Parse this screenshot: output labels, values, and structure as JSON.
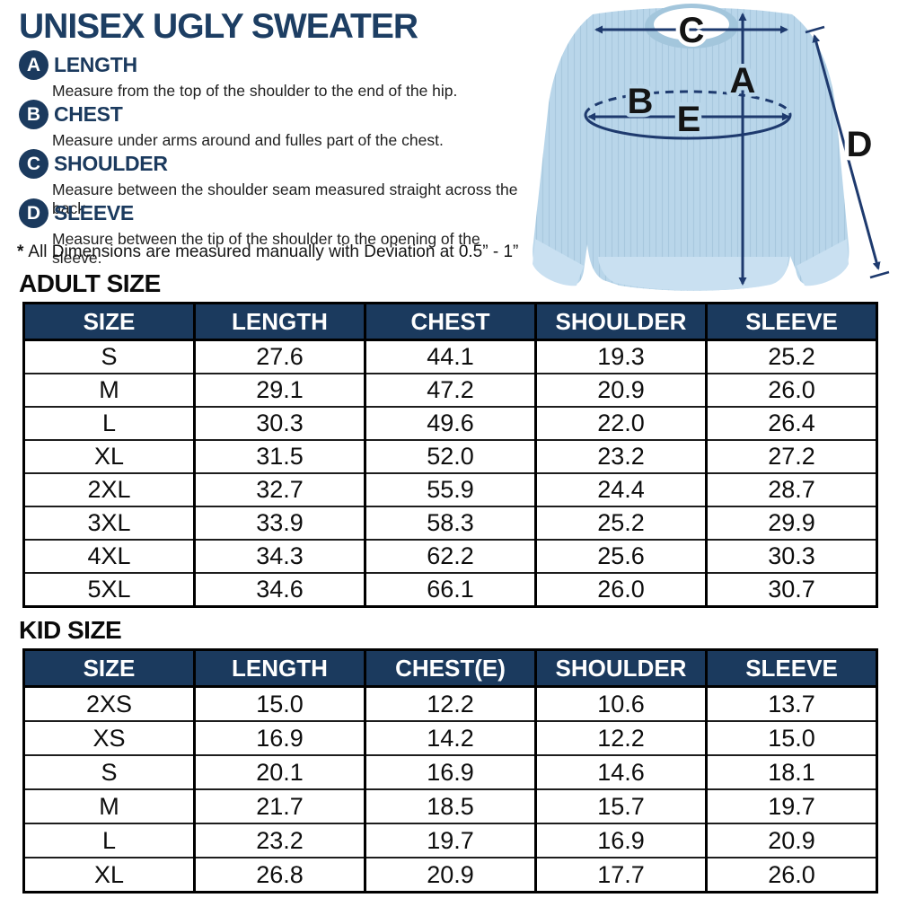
{
  "title": "UNISEX UGLY SWEATER",
  "legend": {
    "items": [
      {
        "badge": "A",
        "label": "LENGTH",
        "description": "Measure from the top of the shoulder to the end of the hip."
      },
      {
        "badge": "B",
        "label": "CHEST",
        "description": "Measure under arms around and fulles part of the chest."
      },
      {
        "badge": "C",
        "label": "SHOULDER",
        "description": "Measure between the shoulder seam measured straight across the back."
      },
      {
        "badge": "D",
        "label": "SLEEVE",
        "description": "Measure between the tip of the shoulder to the opening of the sleeve."
      }
    ],
    "note_star": "*",
    "note": "All Dimensions are measured manually with Deviation at 0.5” - 1”"
  },
  "diagram": {
    "labels": {
      "a": "A",
      "b": "B",
      "c": "C",
      "d": "D",
      "e": "E"
    }
  },
  "adult_table": {
    "heading": "ADULT SIZE",
    "columns": [
      "SIZE",
      "LENGTH",
      "CHEST",
      "SHOULDER",
      "SLEEVE"
    ],
    "rows": [
      [
        "S",
        "27.6",
        "44.1",
        "19.3",
        "25.2"
      ],
      [
        "M",
        "29.1",
        "47.2",
        "20.9",
        "26.0"
      ],
      [
        "L",
        "30.3",
        "49.6",
        "22.0",
        "26.4"
      ],
      [
        "XL",
        "31.5",
        "52.0",
        "23.2",
        "27.2"
      ],
      [
        "2XL",
        "32.7",
        "55.9",
        "24.4",
        "28.7"
      ],
      [
        "3XL",
        "33.9",
        "58.3",
        "25.2",
        "29.9"
      ],
      [
        "4XL",
        "34.3",
        "62.2",
        "25.6",
        "30.3"
      ],
      [
        "5XL",
        "34.6",
        "66.1",
        "26.0",
        "30.7"
      ]
    ]
  },
  "kid_table": {
    "heading": "KID SIZE",
    "columns": [
      "SIZE",
      "LENGTH",
      "CHEST(E)",
      "SHOULDER",
      "SLEEVE"
    ],
    "rows": [
      [
        "2XS",
        "15.0",
        "12.2",
        "10.6",
        "13.7"
      ],
      [
        "XS",
        "16.9",
        "14.2",
        "12.2",
        "15.0"
      ],
      [
        "S",
        "20.1",
        "16.9",
        "14.6",
        "18.1"
      ],
      [
        "M",
        "21.7",
        "18.5",
        "15.7",
        "19.7"
      ],
      [
        "L",
        "23.2",
        "19.7",
        "16.9",
        "20.9"
      ],
      [
        "XL",
        "26.8",
        "20.9",
        "17.7",
        "26.0"
      ]
    ]
  },
  "colors": {
    "navy": "#1b3a5e",
    "title": "#1d3e63",
    "arrow": "#1e3a6e",
    "sweater_body": "#b9d6ea",
    "sweater_trim": "#c9e0f1",
    "sweater_collar": "#a3c6dc"
  }
}
